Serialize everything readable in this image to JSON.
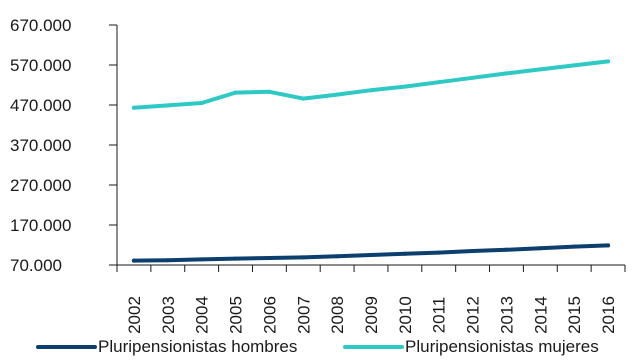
{
  "chart_data": {
    "type": "line",
    "title": "",
    "xlabel": "",
    "ylabel": "",
    "x": [
      "2002",
      "2003",
      "2004",
      "2005",
      "2006",
      "2007",
      "2008",
      "2009",
      "2010",
      "2011",
      "2012",
      "2013",
      "2014",
      "2015",
      "2016"
    ],
    "yticks": [
      70000,
      170000,
      270000,
      370000,
      470000,
      570000,
      670000
    ],
    "ytick_labels": [
      "70.000",
      "170.000",
      "270.000",
      "370.000",
      "470.000",
      "570.000",
      "670.000"
    ],
    "ylim": [
      70000,
      670000
    ],
    "grid": false,
    "legend_position": "bottom",
    "series": [
      {
        "name": "Pluripensionistas hombres",
        "color": "#0d3f6e",
        "values": [
          81000,
          82000,
          84000,
          86000,
          87500,
          89000,
          92000,
          95000,
          98000,
          101000,
          105000,
          108000,
          112000,
          116000,
          119000
        ]
      },
      {
        "name": "Pluripensionistas mujeres",
        "color": "#2ec9c5",
        "values": [
          463000,
          469000,
          475000,
          501000,
          503000,
          486000,
          496000,
          507000,
          516000,
          527000,
          538000,
          549000,
          559000,
          569000,
          579000
        ]
      }
    ]
  }
}
